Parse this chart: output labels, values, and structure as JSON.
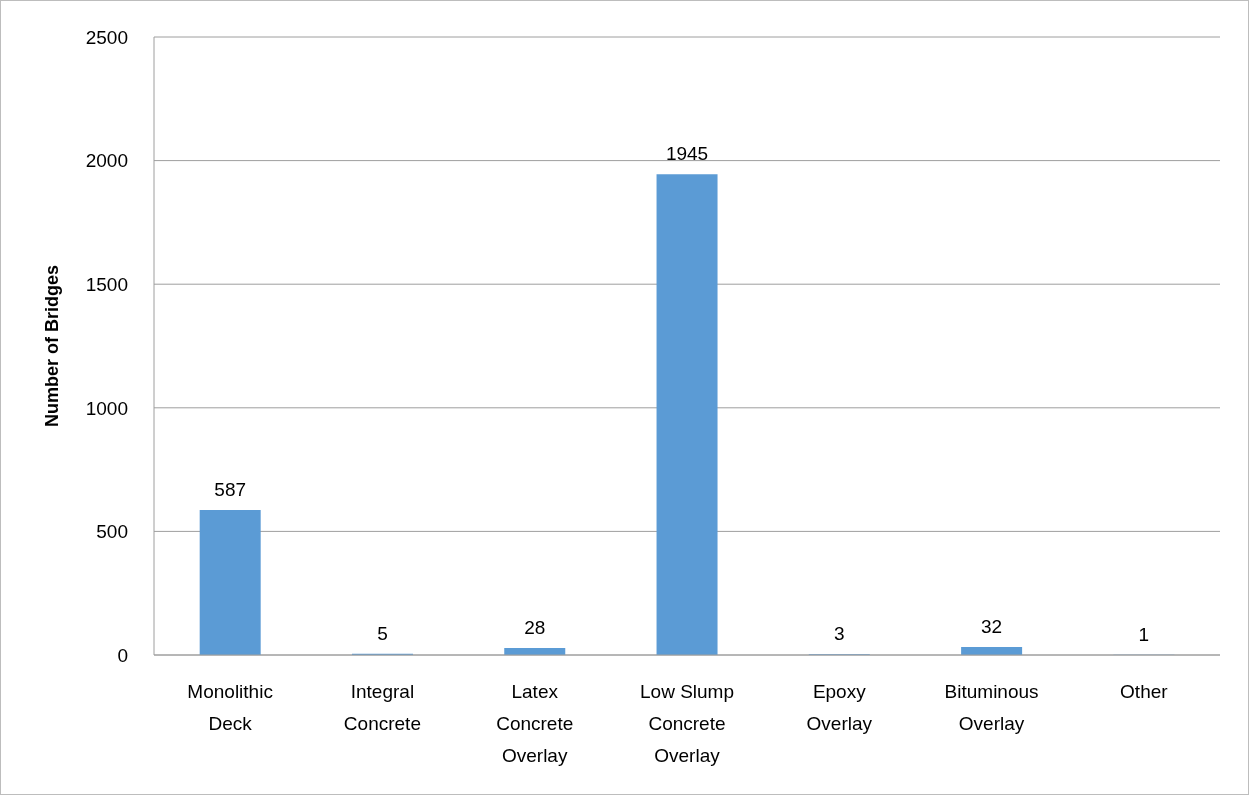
{
  "chart_data": {
    "type": "bar",
    "ylabel": "Number of Bridges",
    "categories": [
      "Monolithic Deck",
      "Integral Concrete",
      "Latex Concrete Overlay",
      "Low Slump Concrete Overlay",
      "Epoxy Overlay",
      "Bituminous Overlay",
      "Other"
    ],
    "values": [
      587,
      5,
      28,
      1945,
      3,
      32,
      1
    ],
    "color": "#5b9bd5",
    "ylim": [
      0,
      2500
    ],
    "yticks": [
      0,
      500,
      1000,
      1500,
      2000,
      2500
    ],
    "grid": "y",
    "data_labels": true
  }
}
